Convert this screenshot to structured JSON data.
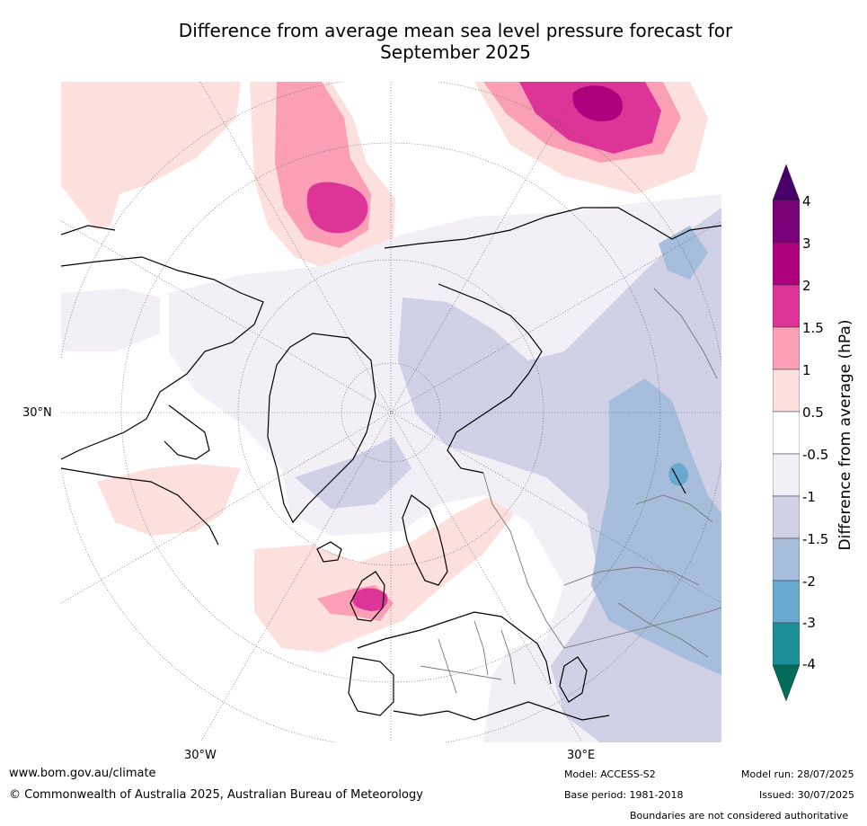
{
  "title_line1": "Difference from average mean sea level pressure forecast for",
  "title_line2": "September 2025",
  "map": {
    "labels": {
      "lat30n": "30°N",
      "lon30w": "30°W",
      "lon30e": "30°E"
    },
    "colors": {
      "pos_0_5_1": "#fde0dd",
      "pos_1_1_5": "#fa9fb5",
      "pos_1_5_2": "#dd3497",
      "pos_2_3": "#ae017e",
      "neg_0_5_1": "#f2eff6",
      "neg_1_1_5": "#d0d1e6",
      "neg_1_5_2": "#a6bddb",
      "neg_2_3": "#67a9cf"
    }
  },
  "colorbar": {
    "title": "Difference from average (hPa)",
    "ticks": [
      "4",
      "3",
      "2",
      "1.5",
      "1",
      "0.5",
      "-0.5",
      "-1",
      "-1.5",
      "-2",
      "-3",
      "-4"
    ],
    "colors": [
      "#49006a",
      "#7a0177",
      "#ae017e",
      "#dd3497",
      "#fa9fb5",
      "#fde0dd",
      "#ffffff",
      "#f2eff6",
      "#d0d1e6",
      "#a6bddb",
      "#67a9cf",
      "#1c9099",
      "#016c59"
    ]
  },
  "footer": {
    "url": "www.bom.gov.au/climate",
    "copyright": "© Commonwealth of Australia 2025, Australian Bureau of Meteorology",
    "model": "Model: ACCESS-S2",
    "model_run": "Model run: 28/07/2025",
    "base_period": "Base period: 1981-2018",
    "issued": "Issued: 30/07/2025",
    "boundaries_note": "Boundaries are not considered authoritative"
  }
}
